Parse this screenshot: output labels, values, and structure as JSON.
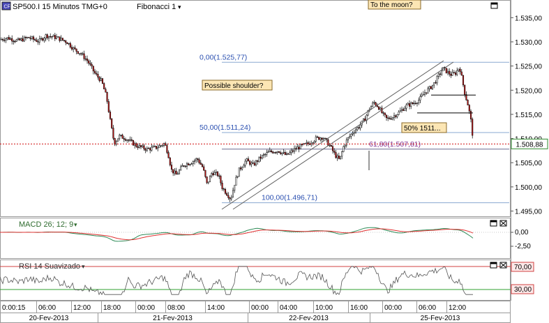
{
  "header": {
    "instrument": "SP500.I 15 Minutos TMG+0",
    "instrument_icon": "chart-app-icon",
    "tool": "Fibonacci 1",
    "dropdown_glyph": "▾"
  },
  "annotations": {
    "moon": "To the moon?",
    "shoulder": "Possible shoulder?",
    "fifty_pct": "50% 1511..."
  },
  "fib_levels": [
    {
      "label": "0,00(1.525,77)",
      "value": 1525.77
    },
    {
      "label": "50,00(1.511,24)",
      "value": 1511.24
    },
    {
      "label": "61,80(1.507,81)",
      "value": 1507.81
    },
    {
      "label": "100,00(1.496,71)",
      "value": 1496.71
    }
  ],
  "price_axis": {
    "ticks": [
      "1.535,00",
      "1.530,00",
      "1.525,00",
      "1.520,00",
      "1.515,00",
      "1.510,00",
      "1.505,00",
      "1.500,00",
      "1.495,00"
    ],
    "tick_values": [
      1535,
      1530,
      1525,
      1520,
      1515,
      1510,
      1505,
      1500,
      1495
    ],
    "range": [
      1494.5,
      1537.5
    ],
    "current_price": "1.508,88",
    "current_value": 1508.88
  },
  "macd": {
    "title": "MACD 26; 12; 9",
    "ticks": [
      "0,00",
      "-2,50"
    ],
    "colors": {
      "macd": "#2e8b57",
      "signal": "#e03030"
    }
  },
  "rsi": {
    "title": "RSI 14 Suavizado",
    "ticks": [
      "70,00",
      "30,00"
    ],
    "colors": {
      "upper": "#d04040",
      "lower": "#30a030",
      "line": "#555555"
    }
  },
  "time_axis": {
    "times": [
      "0:00:15",
      "06:00",
      "12:00",
      "18:00",
      "00:00",
      "08:00",
      "14:00",
      "00:00",
      "04:00",
      "10:00",
      "16:00",
      "00:00",
      "06:00",
      "12:00"
    ],
    "dates": [
      "20-Fev-2013",
      "21-Fev-2013",
      "22-Fev-2013",
      "25-Fev-2013"
    ]
  },
  "colors": {
    "fib_line": "#8aa8d0",
    "fib_label_blue": "#2a4fb0",
    "fib_label_purple": "#803090",
    "current_price_line": "#d01010",
    "current_price_box": "#2e8b2e",
    "annotation_fill": "#fce6b4",
    "annotation_border": "#8a6a2a",
    "candle_up": "#ffffff",
    "candle_down": "#c01818",
    "candle_outline": "#000000",
    "trendline": "#606060"
  }
}
